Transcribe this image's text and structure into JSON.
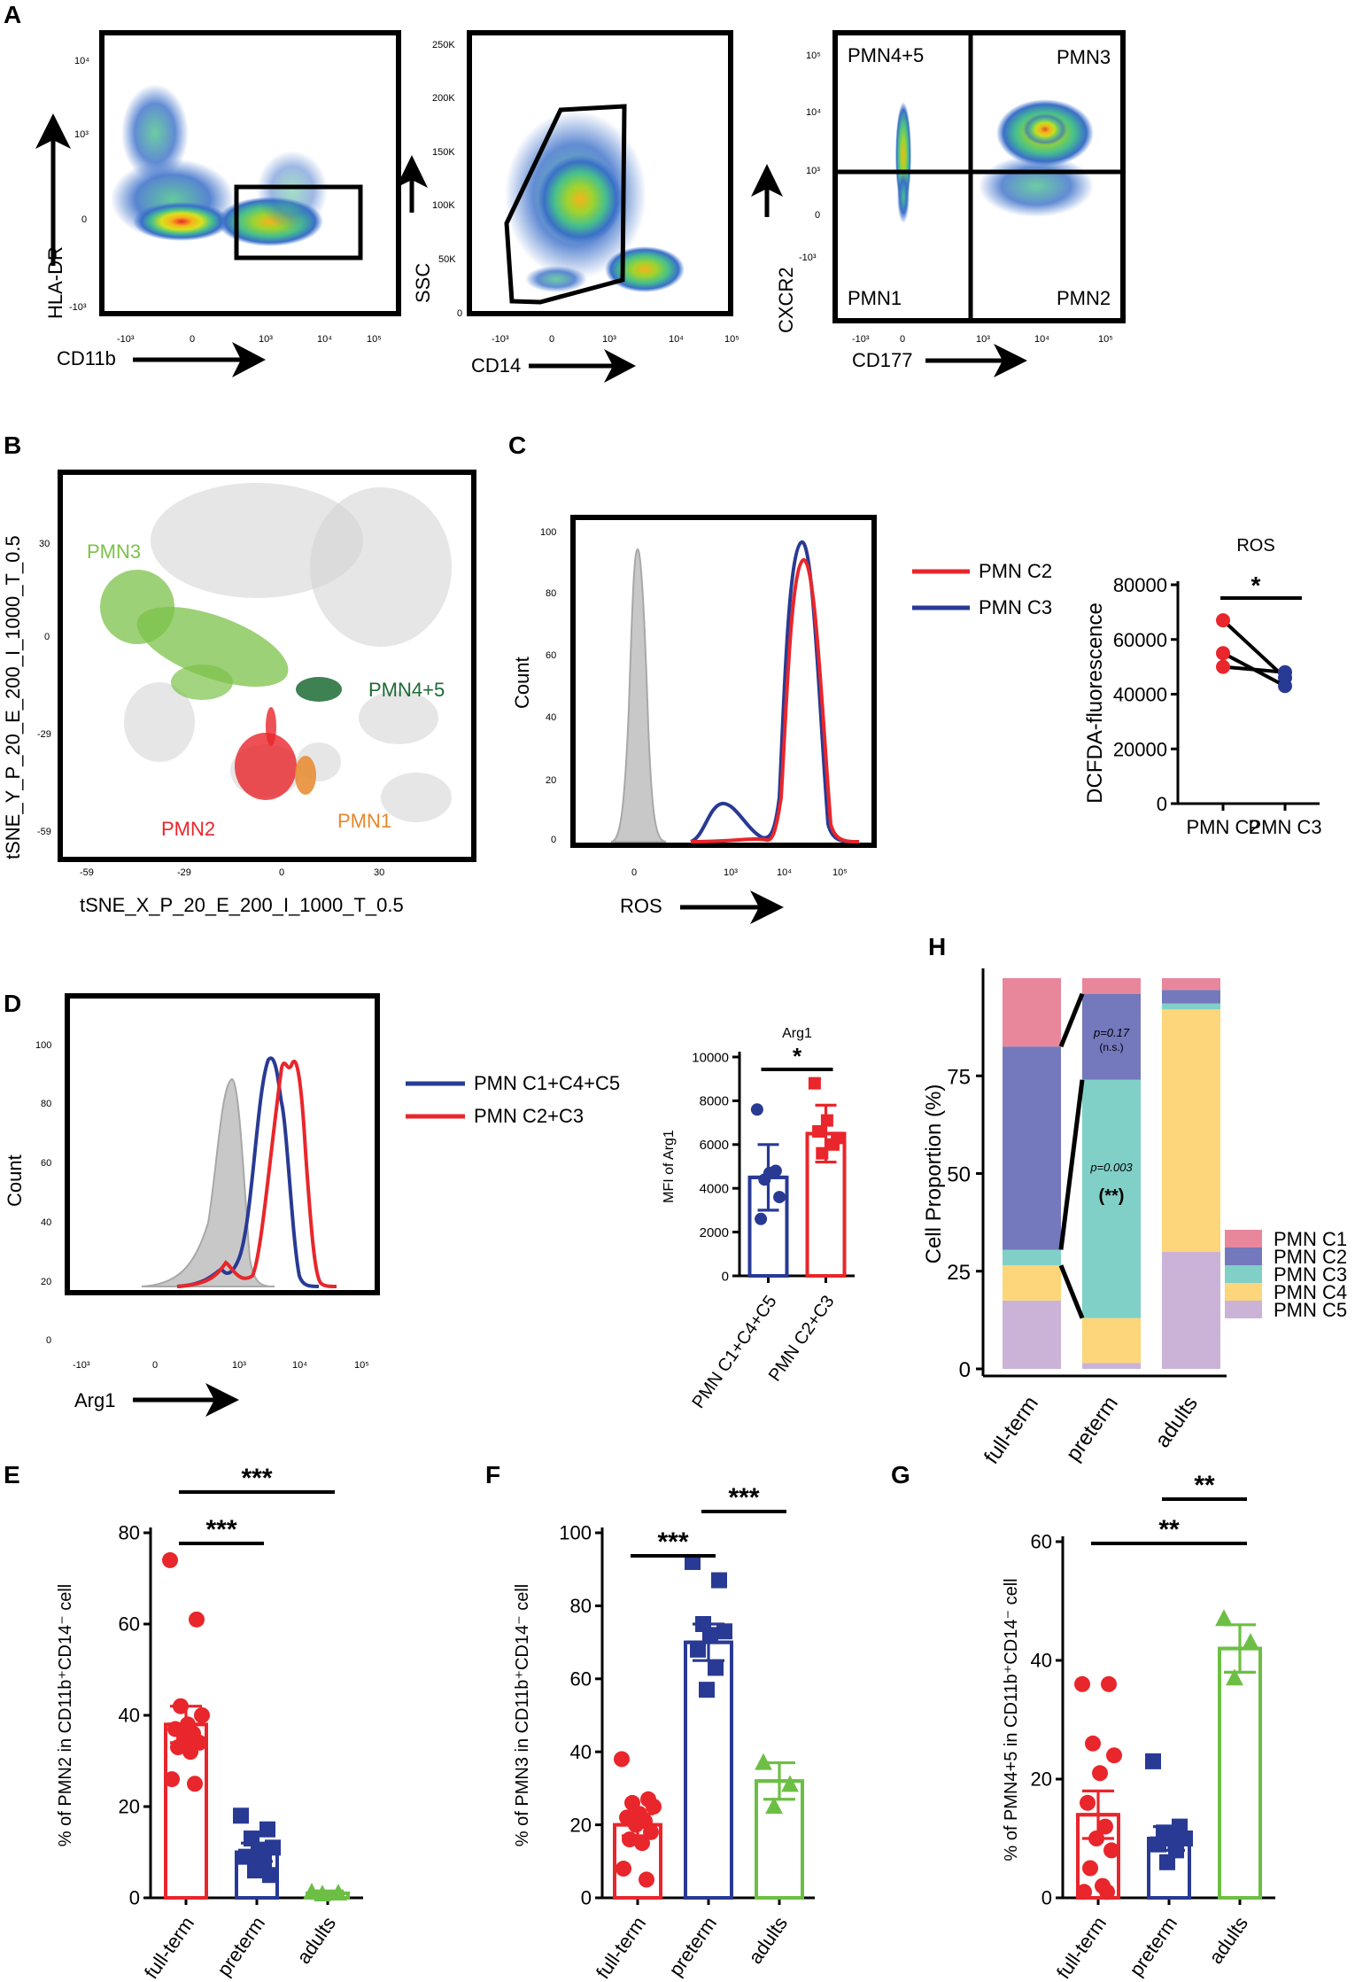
{
  "colors": {
    "red": "#e8262b",
    "blue": "#283a94",
    "green": "#6cbf44",
    "gray": "#bfbfbf",
    "c1": "#e8879c",
    "c2": "#7478bc",
    "c3": "#80d0c7",
    "c4": "#fdd57a",
    "c5": "#cbb3d8",
    "tsne_pmn3": "#7cc24a",
    "tsne_pmn45": "#1c6b34",
    "tsne_pmn2": "#e8262b",
    "tsne_pmn1": "#e8872c"
  },
  "panelA": {
    "letter": "A",
    "plot1": {
      "xlabel": "CD11b",
      "ylabel": "HLA-DR",
      "xticks": [
        "-10³",
        "0",
        "10³",
        "10⁴",
        "10⁵"
      ],
      "yticks": [
        "10⁴",
        "10³",
        "0",
        "-10³"
      ]
    },
    "plot2": {
      "xlabel": "CD14",
      "ylabel": "SSC",
      "xticks": [
        "-10³",
        "0",
        "10³",
        "10⁴",
        "10⁵"
      ],
      "yticks": [
        "250K",
        "200K",
        "150K",
        "100K",
        "50K",
        "0"
      ]
    },
    "plot3": {
      "xlabel": "CD177",
      "ylabel": "CXCR2",
      "xticks": [
        "-10³",
        "0",
        "10³",
        "10⁴",
        "10⁵"
      ],
      "yticks": [
        "10⁵",
        "10⁴",
        "10³",
        "0",
        "-10³"
      ],
      "quadrants": [
        "PMN4+5",
        "PMN3",
        "PMN1",
        "PMN2"
      ]
    }
  },
  "panelB": {
    "letter": "B",
    "xlabel": "tSNE_X_P_20_E_200_I_1000_T_0.5",
    "ylabel": "tSNE_Y_P_20_E_200_I_1000_T_0.5",
    "xticks": [
      "-59",
      "-29",
      "0",
      "30"
    ],
    "yticks": [
      "30",
      "0",
      "-29",
      "-59"
    ],
    "clusters": [
      "PMN3",
      "PMN4+5",
      "PMN2",
      "PMN1"
    ]
  },
  "panelC": {
    "letter": "C",
    "xlabel": "ROS",
    "ylabel": "Count",
    "xticks": [
      "0",
      "10³",
      "10⁴",
      "10⁵"
    ],
    "yticks": [
      "100",
      "80",
      "60",
      "40",
      "20",
      "0"
    ],
    "legend": [
      "PMN C2",
      "PMN C3"
    ]
  },
  "panelD": {
    "letter": "D",
    "xlabel": "Arg1",
    "ylabel": "Count",
    "xticks": [
      "-10³",
      "0",
      "10³",
      "10⁴",
      "10⁵"
    ],
    "yticks": [
      "100",
      "80",
      "60",
      "40",
      "20",
      "0"
    ],
    "legend": [
      "PMN C1+C4+C5",
      "PMN C2+C3"
    ]
  },
  "panelH": {
    "letter": "H",
    "p1": "p=0.17",
    "p1_note": "(n.s.)",
    "p2": "p=0.003",
    "p2_note": "(**)"
  },
  "panelE": {
    "letter": "E"
  },
  "panelF": {
    "letter": "F"
  },
  "panelG": {
    "letter": "G"
  },
  "chart_data": [
    {
      "id": "C_ros",
      "type": "line",
      "title": "ROS",
      "xlabel": "",
      "ylabel": "DCFDA-fluorescence",
      "categories": [
        "PMN C2",
        "PMN C3"
      ],
      "yticks": [
        0,
        20000,
        40000,
        60000,
        80000
      ],
      "ylim": [
        0,
        80000
      ],
      "pairs": [
        [
          67000,
          46000
        ],
        [
          55000,
          43000
        ],
        [
          50000,
          48000
        ]
      ],
      "significance": "*"
    },
    {
      "id": "D_arg1",
      "type": "bar",
      "title": "Arg1",
      "ylabel": "MFI of Arg1",
      "categories": [
        "PMN C1+C4+C5",
        "PMN C2+C3"
      ],
      "yticks": [
        0,
        2000,
        4000,
        6000,
        8000,
        10000
      ],
      "ylim": [
        0,
        10000
      ],
      "means": [
        4500,
        6500
      ],
      "sem": [
        1500,
        1300
      ],
      "points": [
        [
          7600,
          4800,
          4400,
          3600,
          4700,
          2600
        ],
        [
          8800,
          6000,
          5600,
          6300,
          7100,
          6600
        ]
      ],
      "significance": "*"
    },
    {
      "id": "H_prop",
      "type": "bar",
      "stacked": true,
      "ylabel": "Cell Proportion (%)",
      "categories": [
        "full-term",
        "preterm",
        "adults"
      ],
      "yticks": [
        0,
        25,
        50,
        75
      ],
      "ylim": [
        0,
        100
      ],
      "series": [
        {
          "name": "PMN C5",
          "values": [
            17.5,
            1.5,
            30
          ]
        },
        {
          "name": "PMN C4",
          "values": [
            9,
            11.5,
            62
          ]
        },
        {
          "name": "PMN C3",
          "values": [
            4,
            61,
            1.5
          ]
        },
        {
          "name": "PMN C2",
          "values": [
            52,
            22,
            3.5
          ]
        },
        {
          "name": "PMN C1",
          "values": [
            17.5,
            4,
            3
          ]
        }
      ]
    },
    {
      "id": "E_pmn2",
      "type": "bar",
      "ylabel": "% of PMN2 in CD11b⁺CD14⁻ cell",
      "categories": [
        "full-term",
        "preterm",
        "adults"
      ],
      "yticks": [
        0,
        20,
        40,
        60,
        80
      ],
      "ylim": [
        0,
        80
      ],
      "means": [
        38,
        10,
        1
      ],
      "sem": [
        4,
        2,
        0.5
      ],
      "points": [
        [
          74,
          61,
          42,
          40,
          38,
          37,
          36,
          35,
          34,
          33,
          32,
          26,
          25
        ],
        [
          18,
          15,
          13,
          11,
          10,
          9,
          8,
          6,
          5
        ],
        [
          1.2,
          1,
          0.8
        ]
      ],
      "significance": [
        {
          "pair": [
            0,
            1
          ],
          "label": "***"
        },
        {
          "pair": [
            0,
            2
          ],
          "label": "***"
        }
      ]
    },
    {
      "id": "F_pmn3",
      "type": "bar",
      "ylabel": "% of PMN3  in CD11b⁺CD14⁻ cell",
      "categories": [
        "full-term",
        "preterm",
        "adults"
      ],
      "yticks": [
        0,
        20,
        40,
        60,
        80,
        100
      ],
      "ylim": [
        0,
        100
      ],
      "means": [
        20,
        70,
        32
      ],
      "sem": [
        3,
        5,
        5
      ],
      "points": [
        [
          38,
          27,
          26,
          25,
          23,
          22,
          21,
          20,
          18,
          16,
          15,
          8,
          5
        ],
        [
          92,
          87,
          75,
          73,
          72,
          68,
          63,
          57
        ],
        [
          37,
          31,
          25
        ]
      ],
      "significance": [
        {
          "pair": [
            0,
            1
          ],
          "label": "***"
        },
        {
          "pair": [
            1,
            2
          ],
          "label": "***"
        }
      ]
    },
    {
      "id": "G_pmn45",
      "type": "bar",
      "ylabel": "% of PMN4+5 in CD11b⁺CD14⁻ cell",
      "categories": [
        "full-term",
        "preterm",
        "adults"
      ],
      "yticks": [
        0,
        20,
        40,
        60
      ],
      "ylim": [
        0,
        60
      ],
      "means": [
        14,
        10,
        42
      ],
      "sem": [
        4,
        2,
        4
      ],
      "points": [
        [
          36,
          36,
          26,
          24,
          21,
          16,
          12,
          10,
          8,
          5,
          2,
          1,
          1
        ],
        [
          23,
          12,
          11,
          10,
          10,
          9,
          8,
          6
        ],
        [
          47,
          43,
          37
        ]
      ],
      "significance": [
        {
          "pair": [
            0,
            2
          ],
          "label": "**"
        },
        {
          "pair": [
            1,
            2
          ],
          "label": "**"
        }
      ]
    }
  ]
}
